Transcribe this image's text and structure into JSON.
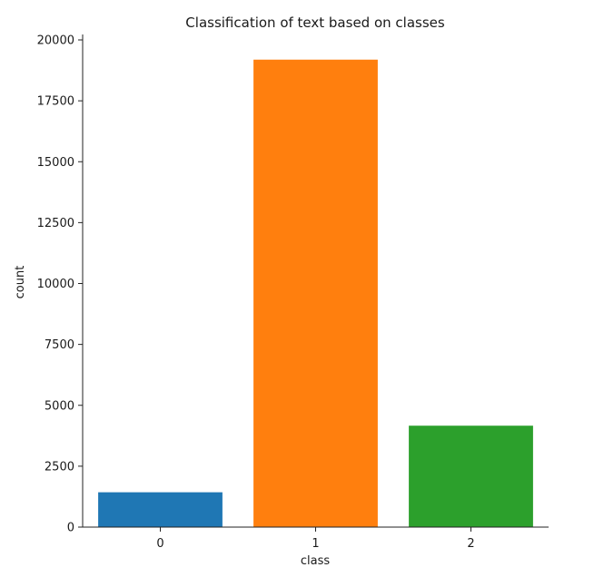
{
  "chart_data": {
    "type": "bar",
    "title": "Classification of text based on classes",
    "xlabel": "class",
    "ylabel": "count",
    "categories": [
      "0",
      "1",
      "2"
    ],
    "values": [
      1430,
      19190,
      4163
    ],
    "colors": [
      "#1f77b4",
      "#ff7f0e",
      "#2ca02c"
    ],
    "ylim": [
      0,
      20000
    ],
    "yticks": [
      0,
      2500,
      5000,
      7500,
      10000,
      12500,
      15000,
      17500,
      20000
    ],
    "grid": false,
    "legend": "none"
  }
}
